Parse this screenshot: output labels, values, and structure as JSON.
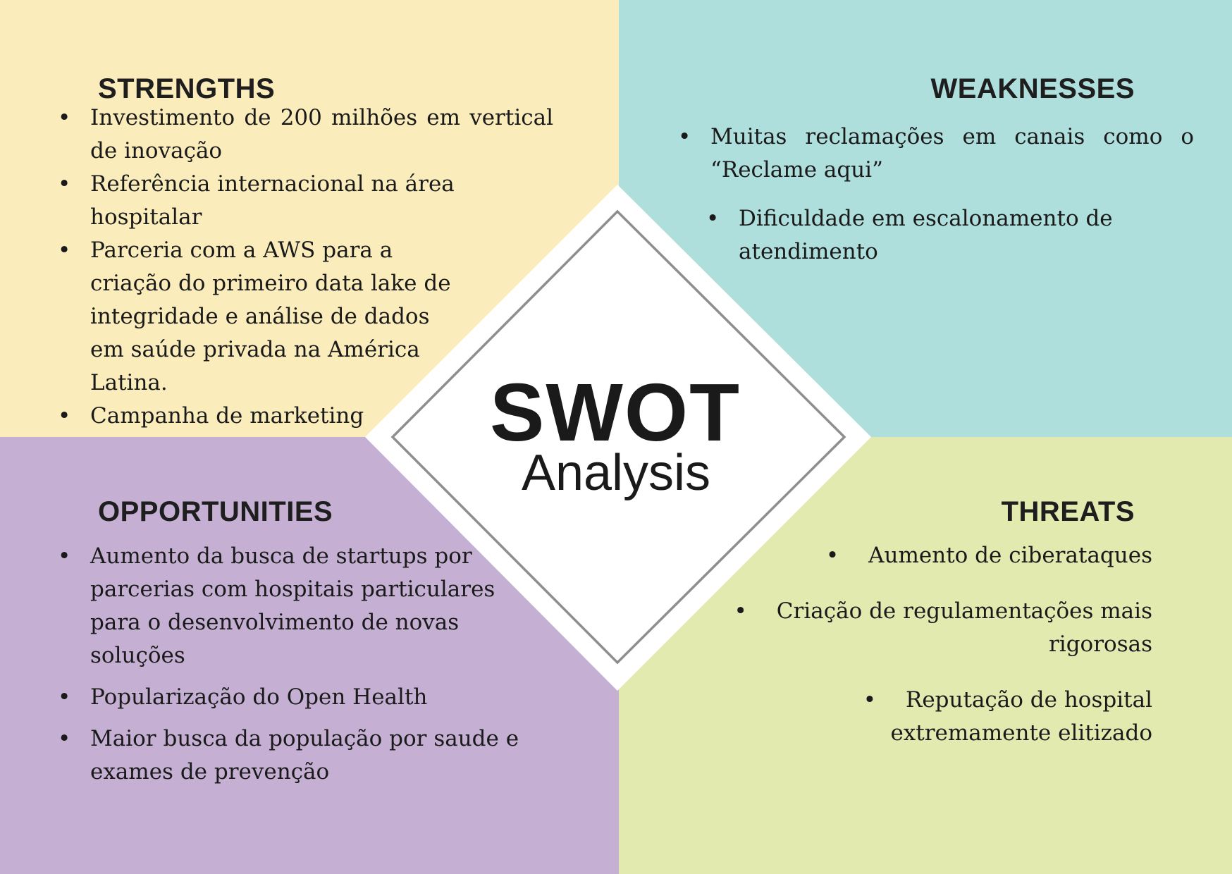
{
  "center": {
    "title": "SWOT",
    "subtitle": "Analysis"
  },
  "strengths": {
    "heading": "STRENGTHS",
    "items": [
      "Investimento de 200 milhões em vertical de inovação",
      "Referência internacional  na área hospitalar",
      "Parceria com a AWS para a criação do primeiro data lake de integridade e análise de dados em saúde privada na América Latina.",
      "Campanha de marketing"
    ]
  },
  "weaknesses": {
    "heading": "WEAKNESSES",
    "items": [
      "Muitas reclamações em canais como o “Reclame aqui”",
      "Dificuldade em escalonamento de atendimento"
    ]
  },
  "opportunities": {
    "heading": "OPPORTUNITIES",
    "items": [
      "Aumento da busca de startups por parcerias com hospitais particulares para o desenvolvimento de novas soluções",
      "Popularização do Open Health",
      "Maior busca da população por saude e exames de prevenção"
    ]
  },
  "threats": {
    "heading": "THREATS",
    "items": [
      "Aumento de ciberataques",
      "Criação de regulamentações mais rigorosas",
      "Reputação de hospital extremamente elitizado"
    ]
  },
  "colors": {
    "strengths_bg": "#fbedbb",
    "weaknesses_bg": "#afdfdd",
    "opportunities_bg": "#c5b0d4",
    "threats_bg": "#e2eab0"
  }
}
